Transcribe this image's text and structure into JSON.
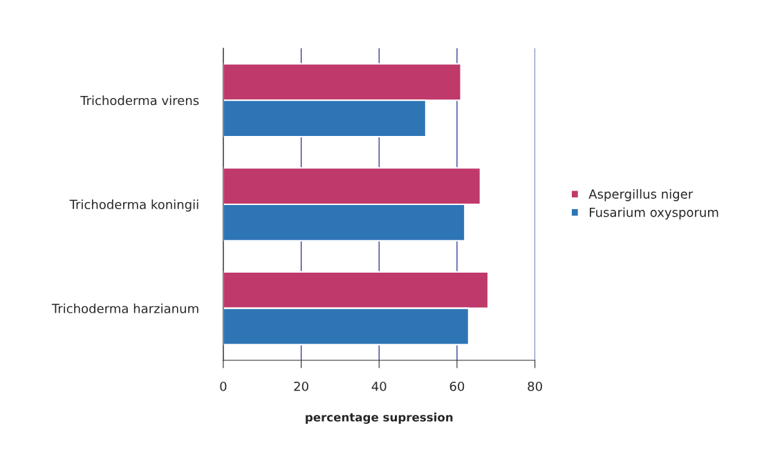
{
  "chart_data": {
    "type": "bar",
    "orientation": "horizontal",
    "xlabel": "percentage supression",
    "categories": [
      "Trichoderma virens",
      "Trichoderma koningii",
      "Trichoderma harzianum"
    ],
    "series": [
      {
        "name": "Aspergillus niger",
        "color": "#c0396b",
        "values": [
          61,
          66,
          68
        ]
      },
      {
        "name": "Fusarium oxysporum",
        "color": "#2e75b6",
        "values": [
          52,
          62,
          63
        ]
      }
    ],
    "xlim": [
      0,
      80
    ],
    "xticks": [
      0,
      20,
      40,
      60,
      80
    ],
    "grid": "x",
    "legend": "right"
  }
}
